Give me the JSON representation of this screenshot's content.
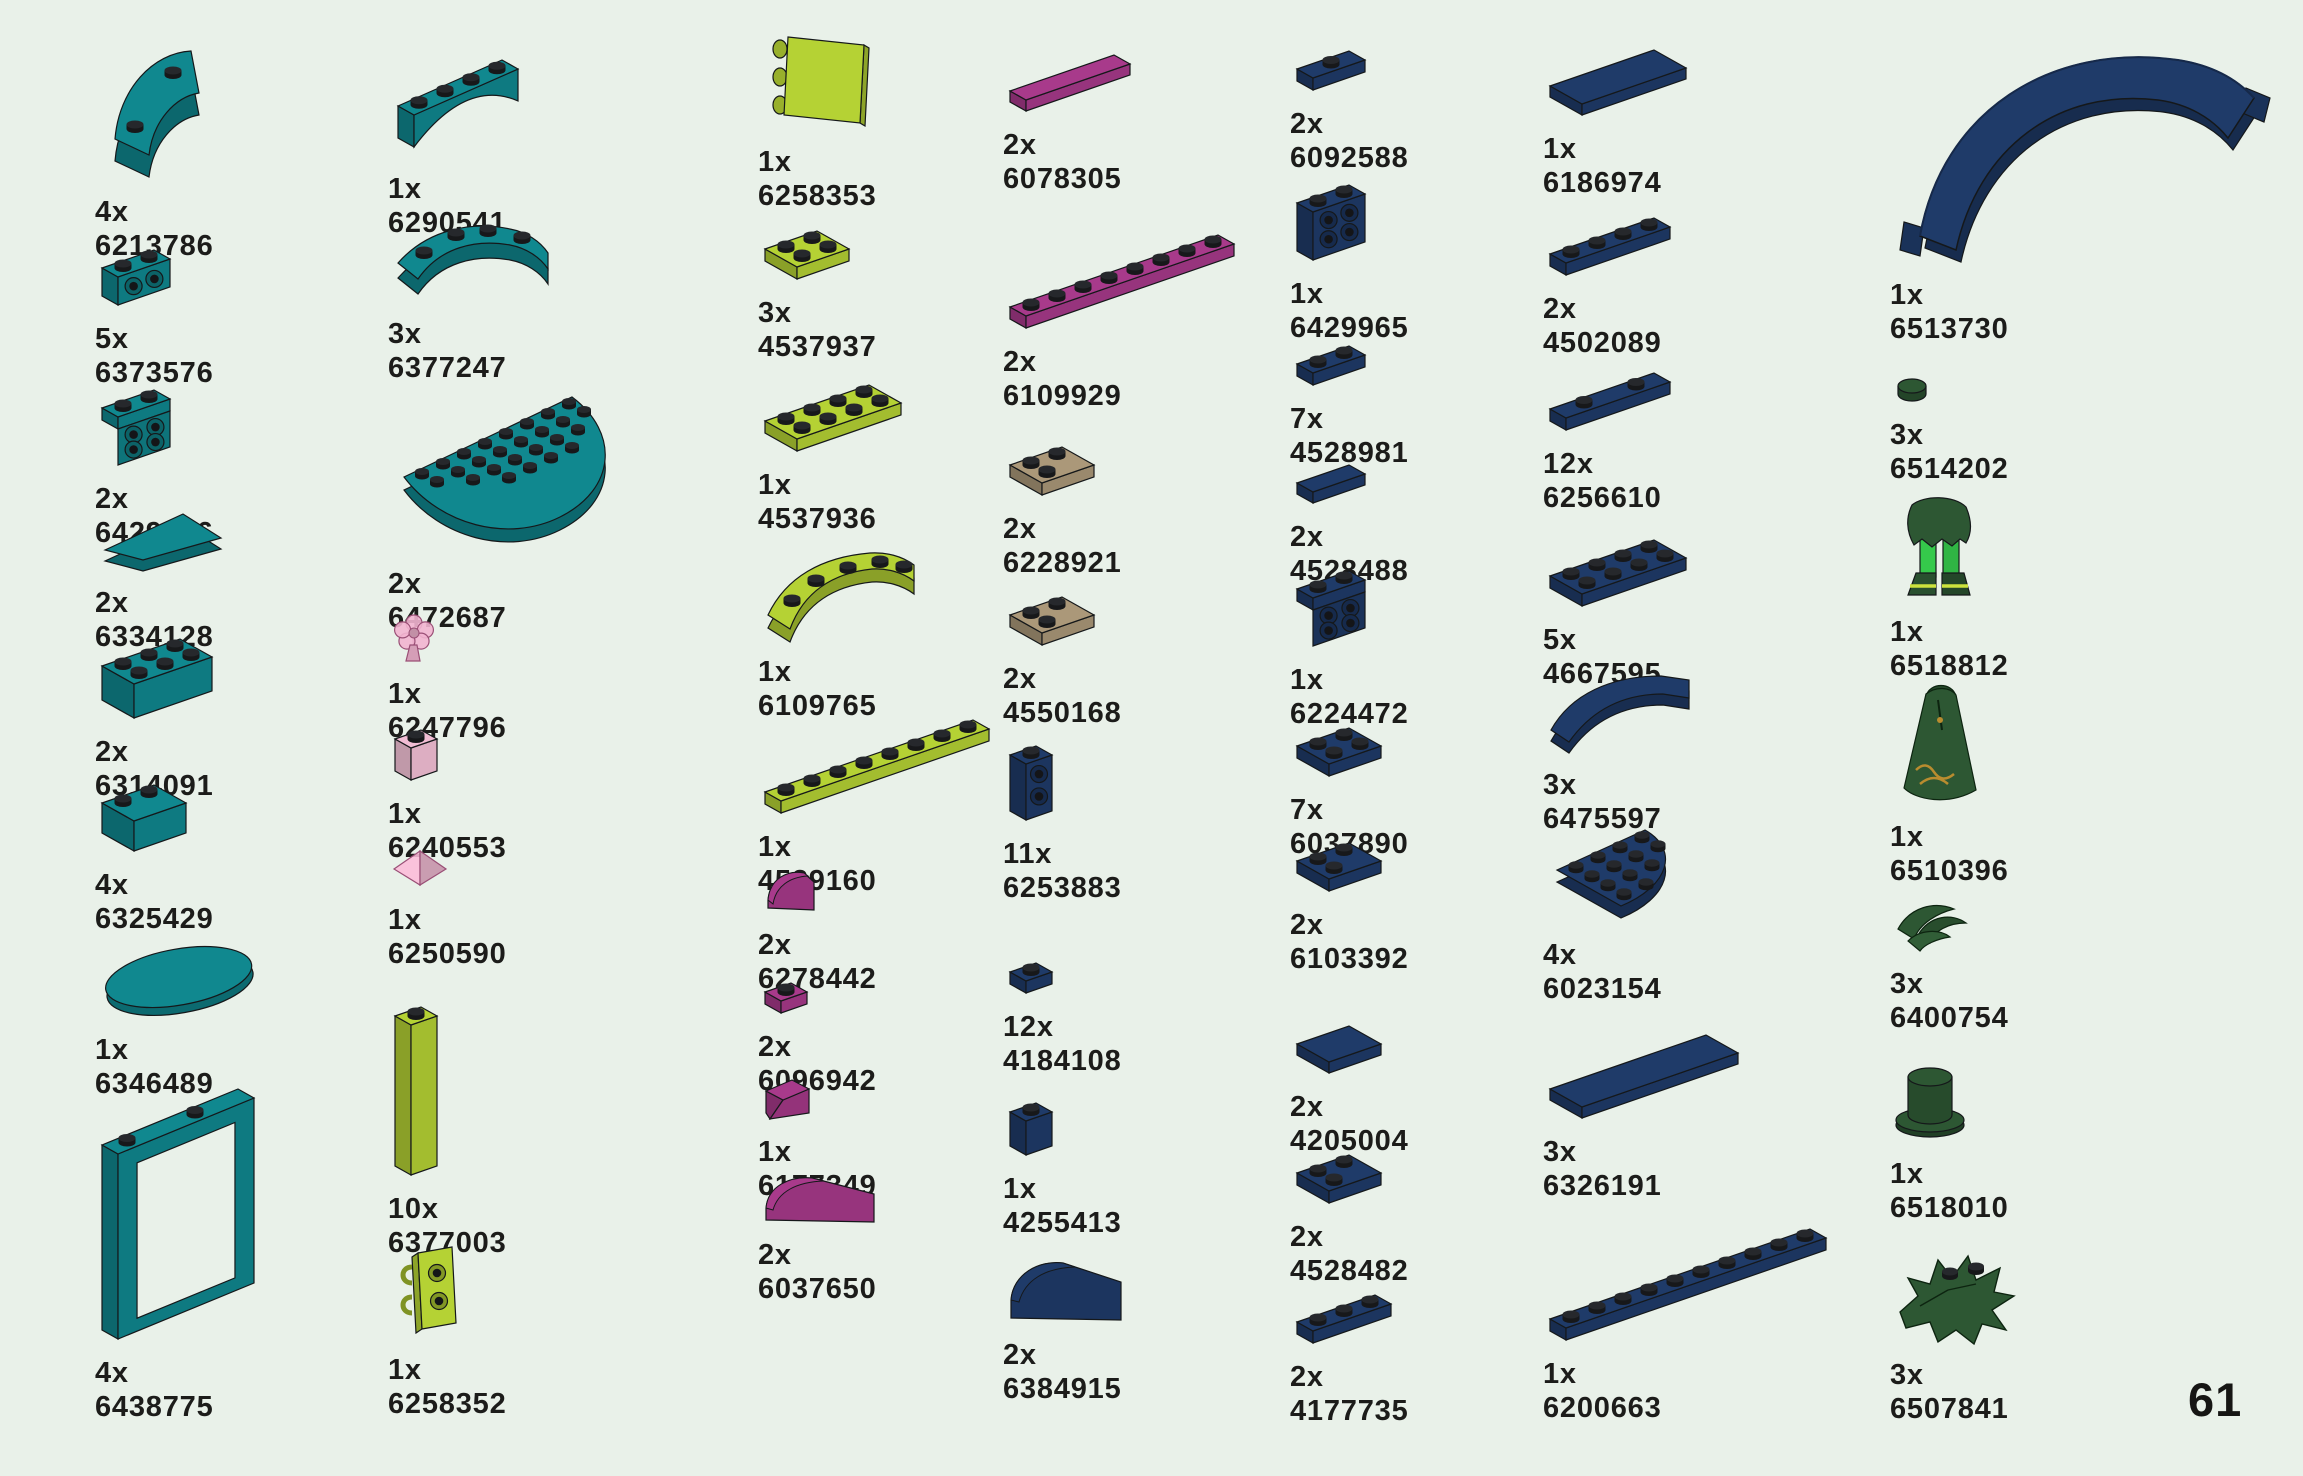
{
  "page_number": "61",
  "colors": {
    "teal": "#10888F",
    "lime": "#B5D234",
    "magenta": "#A83A8B",
    "trans_pink": "#F2B4D0",
    "tan": "#AB9879",
    "dark_blue": "#1F3B69",
    "dark_green": "#2D5733",
    "bright_green": "#35C94B",
    "background": "#E9F1E9",
    "text": "#1C1C1A"
  },
  "columns": [
    {
      "items": [
        {
          "qty": "4x",
          "part_number": "6213786",
          "color": "teal",
          "shape": "macaroni-brick"
        },
        {
          "qty": "5x",
          "part_number": "6373576",
          "color": "teal",
          "shape": "bracket-1x2"
        },
        {
          "qty": "2x",
          "part_number": "6429966",
          "color": "teal",
          "shape": "bracket-1x2-2x2"
        },
        {
          "qty": "2x",
          "part_number": "6334128",
          "color": "teal",
          "shape": "wedge-plate"
        },
        {
          "qty": "2x",
          "part_number": "6314091",
          "color": "teal",
          "shape": "brick-2x3"
        },
        {
          "qty": "4x",
          "part_number": "6325429",
          "color": "teal",
          "shape": "curved-brick-2x2"
        },
        {
          "qty": "1x",
          "part_number": "6346489",
          "color": "teal",
          "shape": "oval-tile"
        },
        {
          "qty": "4x",
          "part_number": "6438775",
          "color": "teal",
          "shape": "door-frame"
        }
      ]
    },
    {
      "items": [
        {
          "qty": "1x",
          "part_number": "6290541",
          "color": "teal",
          "shape": "arch-1x4"
        },
        {
          "qty": "3x",
          "part_number": "6377247",
          "color": "teal",
          "shape": "curved-arch-1x4"
        },
        {
          "qty": "2x",
          "part_number": "6472687",
          "color": "teal",
          "shape": "half-round-plate"
        },
        {
          "qty": "1x",
          "part_number": "6247796",
          "color": "trans_pink",
          "shape": "flower"
        },
        {
          "qty": "1x",
          "part_number": "6240553",
          "color": "trans_pink",
          "shape": "trans-brick-1x1"
        },
        {
          "qty": "1x",
          "part_number": "6250590",
          "color": "trans_pink",
          "shape": "pyramid-tile"
        },
        {
          "qty": "10x",
          "part_number": "6377003",
          "color": "lime",
          "shape": "column-1x1x5"
        },
        {
          "qty": "1x",
          "part_number": "6258352",
          "color": "lime",
          "shape": "clip-bracket"
        }
      ]
    },
    {
      "items": [
        {
          "qty": "1x",
          "part_number": "6258353",
          "color": "lime",
          "shape": "panel-flag"
        },
        {
          "qty": "3x",
          "part_number": "4537937",
          "color": "lime",
          "shape": "plate-2x2"
        },
        {
          "qty": "1x",
          "part_number": "4537936",
          "color": "lime",
          "shape": "plate-2x4"
        },
        {
          "qty": "1x",
          "part_number": "6109765",
          "color": "lime",
          "shape": "curved-plate-3x3"
        },
        {
          "qty": "1x",
          "part_number": "4529160",
          "color": "lime",
          "shape": "plate-1x8"
        },
        {
          "qty": "2x",
          "part_number": "6278442",
          "color": "magenta",
          "shape": "curved-slope-1x1"
        },
        {
          "qty": "2x",
          "part_number": "6096942",
          "color": "magenta",
          "shape": "plate-1x1"
        },
        {
          "qty": "1x",
          "part_number": "6177349",
          "color": "magenta",
          "shape": "slope-1x2"
        },
        {
          "qty": "2x",
          "part_number": "6037650",
          "color": "magenta",
          "shape": "curved-slope-2x1"
        }
      ]
    },
    {
      "items": [
        {
          "qty": "2x",
          "part_number": "6078305",
          "color": "magenta",
          "shape": "tile-1x4"
        },
        {
          "qty": "2x",
          "part_number": "6109929",
          "color": "magenta",
          "shape": "plate-1x8"
        },
        {
          "qty": "2x",
          "part_number": "6228921",
          "color": "tan",
          "shape": "corner-plate"
        },
        {
          "qty": "2x",
          "part_number": "4550168",
          "color": "tan",
          "shape": "corner-plate"
        },
        {
          "qty": "11x",
          "part_number": "6253883",
          "color": "dark_blue",
          "shape": "sidestud-brick-1x1x2"
        },
        {
          "qty": "12x",
          "part_number": "4184108",
          "color": "dark_blue",
          "shape": "plate-1x1"
        },
        {
          "qty": "1x",
          "part_number": "4255413",
          "color": "dark_blue",
          "shape": "brick-1x1"
        },
        {
          "qty": "2x",
          "part_number": "6384915",
          "color": "dark_blue",
          "shape": "curved-slope-2x1-large"
        }
      ]
    },
    {
      "items": [
        {
          "qty": "2x",
          "part_number": "6092588",
          "color": "dark_blue",
          "shape": "jumper-plate-1x2"
        },
        {
          "qty": "1x",
          "part_number": "6429965",
          "color": "dark_blue",
          "shape": "sidestud-brick-1x2"
        },
        {
          "qty": "7x",
          "part_number": "4528981",
          "color": "dark_blue",
          "shape": "plate-1x2"
        },
        {
          "qty": "2x",
          "part_number": "4528488",
          "color": "dark_blue",
          "shape": "tile-1x2"
        },
        {
          "qty": "1x",
          "part_number": "6224472",
          "color": "dark_blue",
          "shape": "bracket-1x2-2x2"
        },
        {
          "qty": "7x",
          "part_number": "6037890",
          "color": "dark_blue",
          "shape": "plate-2x2"
        },
        {
          "qty": "2x",
          "part_number": "6103392",
          "color": "dark_blue",
          "shape": "corner-plate"
        },
        {
          "qty": "2x",
          "part_number": "4205004",
          "color": "dark_blue",
          "shape": "tile-2x2"
        },
        {
          "qty": "2x",
          "part_number": "4528482",
          "color": "dark_blue",
          "shape": "corner-plate"
        },
        {
          "qty": "2x",
          "part_number": "4177735",
          "color": "dark_blue",
          "shape": "plate-1x3"
        }
      ]
    },
    {
      "items": [
        {
          "qty": "1x",
          "part_number": "6186974",
          "color": "dark_blue",
          "shape": "tile-2x4"
        },
        {
          "qty": "2x",
          "part_number": "4502089",
          "color": "dark_blue",
          "shape": "plate-1x4"
        },
        {
          "qty": "12x",
          "part_number": "6256610",
          "color": "dark_blue",
          "shape": "jumper-plate-1x4"
        },
        {
          "qty": "5x",
          "part_number": "4667595",
          "color": "dark_blue",
          "shape": "plate-2x4"
        },
        {
          "qty": "3x",
          "part_number": "6475597",
          "color": "dark_blue",
          "shape": "curved-tile-2x2"
        },
        {
          "qty": "4x",
          "part_number": "6023154",
          "color": "dark_blue",
          "shape": "round-corner-plate-4x4"
        },
        {
          "qty": "3x",
          "part_number": "6326191",
          "color": "dark_blue",
          "shape": "tile-2x6"
        },
        {
          "qty": "1x",
          "part_number": "6200663",
          "color": "dark_blue",
          "shape": "plate-1x10"
        }
      ]
    },
    {
      "items": [
        {
          "qty": "1x",
          "part_number": "6513730",
          "color": "dark_blue",
          "shape": "big-arch"
        },
        {
          "qty": "3x",
          "part_number": "6514202",
          "color": "dark_green",
          "shape": "round-tile-1x1"
        },
        {
          "qty": "1x",
          "part_number": "6518812",
          "color": "dark_green",
          "shape": "minifig-legs"
        },
        {
          "qty": "1x",
          "part_number": "6510396",
          "color": "dark_green",
          "shape": "dress"
        },
        {
          "qty": "3x",
          "part_number": "6400754",
          "color": "dark_green",
          "shape": "leaves-small"
        },
        {
          "qty": "1x",
          "part_number": "6518010",
          "color": "dark_green",
          "shape": "top-hat"
        },
        {
          "qty": "3x",
          "part_number": "6507841",
          "color": "dark_green",
          "shape": "leaves-large"
        }
      ]
    }
  ]
}
